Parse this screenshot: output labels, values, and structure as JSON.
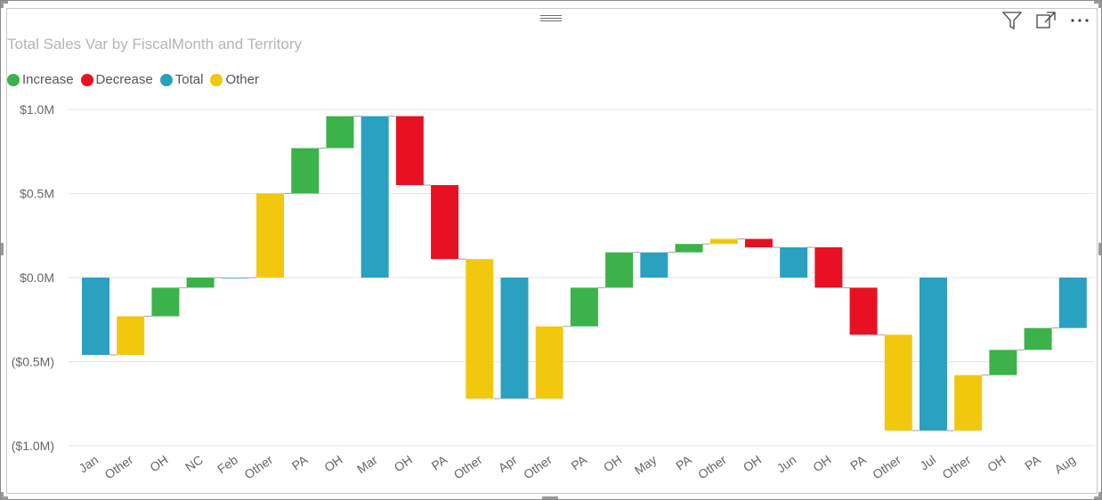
{
  "visual": {
    "title": "Total Sales Var by FiscalMonth and Territory",
    "toolbar": {
      "filter_icon": "filter-icon",
      "focus_icon": "focus-mode-icon",
      "more_icon": "more-options-icon"
    }
  },
  "legend": [
    {
      "label": "Increase",
      "color": "#3bb34a"
    },
    {
      "label": "Decrease",
      "color": "#e81123"
    },
    {
      "label": "Total",
      "color": "#2aa1c0"
    },
    {
      "label": "Other",
      "color": "#f2c80f"
    }
  ],
  "chart_data": {
    "type": "waterfall",
    "title": "Total Sales Var by FiscalMonth and Territory",
    "xlabel": "",
    "ylabel": "",
    "ylim": [
      -1.0,
      1.0
    ],
    "y_ticks": [
      1.0,
      0.5,
      0.0,
      -0.5,
      -1.0
    ],
    "y_tick_labels": [
      "$1.0M",
      "$0.5M",
      "$0.0M",
      "($0.5M)",
      "($1.0M)"
    ],
    "grid": true,
    "legend_position": "top-left",
    "units": "$M",
    "categories": [
      "Jan",
      "Other",
      "OH",
      "NC",
      "Feb",
      "Other",
      "PA",
      "OH",
      "Mar",
      "OH",
      "PA",
      "Other",
      "Apr",
      "Other",
      "PA",
      "OH",
      "May",
      "PA",
      "Other",
      "OH",
      "Jun",
      "OH",
      "PA",
      "Other",
      "Jul",
      "Other",
      "OH",
      "PA",
      "Aug"
    ],
    "bars": [
      {
        "category": "Jan",
        "kind": "Total",
        "start": 0.0,
        "end": -0.46
      },
      {
        "category": "Other",
        "kind": "Other",
        "start": -0.46,
        "end": -0.23
      },
      {
        "category": "OH",
        "kind": "Increase",
        "start": -0.23,
        "end": -0.06
      },
      {
        "category": "NC",
        "kind": "Increase",
        "start": -0.06,
        "end": 0.0
      },
      {
        "category": "Feb",
        "kind": "Total",
        "start": 0.0,
        "end": 0.0
      },
      {
        "category": "Other",
        "kind": "Other",
        "start": 0.0,
        "end": 0.5
      },
      {
        "category": "PA",
        "kind": "Increase",
        "start": 0.5,
        "end": 0.77
      },
      {
        "category": "OH",
        "kind": "Increase",
        "start": 0.77,
        "end": 0.96
      },
      {
        "category": "Mar",
        "kind": "Total",
        "start": 0.0,
        "end": 0.96
      },
      {
        "category": "OH",
        "kind": "Decrease",
        "start": 0.96,
        "end": 0.55
      },
      {
        "category": "PA",
        "kind": "Decrease",
        "start": 0.55,
        "end": 0.11
      },
      {
        "category": "Other",
        "kind": "Other",
        "start": 0.11,
        "end": -0.72
      },
      {
        "category": "Apr",
        "kind": "Total",
        "start": 0.0,
        "end": -0.72
      },
      {
        "category": "Other",
        "kind": "Other",
        "start": -0.72,
        "end": -0.29
      },
      {
        "category": "PA",
        "kind": "Increase",
        "start": -0.29,
        "end": -0.06
      },
      {
        "category": "OH",
        "kind": "Increase",
        "start": -0.06,
        "end": 0.15
      },
      {
        "category": "May",
        "kind": "Total",
        "start": 0.0,
        "end": 0.15
      },
      {
        "category": "PA",
        "kind": "Increase",
        "start": 0.15,
        "end": 0.2
      },
      {
        "category": "Other",
        "kind": "Other",
        "start": 0.2,
        "end": 0.23
      },
      {
        "category": "OH",
        "kind": "Decrease",
        "start": 0.23,
        "end": 0.18
      },
      {
        "category": "Jun",
        "kind": "Total",
        "start": 0.0,
        "end": 0.18
      },
      {
        "category": "OH",
        "kind": "Decrease",
        "start": 0.18,
        "end": -0.06
      },
      {
        "category": "PA",
        "kind": "Decrease",
        "start": -0.06,
        "end": -0.34
      },
      {
        "category": "Other",
        "kind": "Other",
        "start": -0.34,
        "end": -0.91
      },
      {
        "category": "Jul",
        "kind": "Total",
        "start": 0.0,
        "end": -0.91
      },
      {
        "category": "Other",
        "kind": "Other",
        "start": -0.91,
        "end": -0.58
      },
      {
        "category": "OH",
        "kind": "Increase",
        "start": -0.58,
        "end": -0.43
      },
      {
        "category": "PA",
        "kind": "Increase",
        "start": -0.43,
        "end": -0.3
      },
      {
        "category": "Aug",
        "kind": "Total",
        "start": 0.0,
        "end": -0.3
      }
    ]
  }
}
